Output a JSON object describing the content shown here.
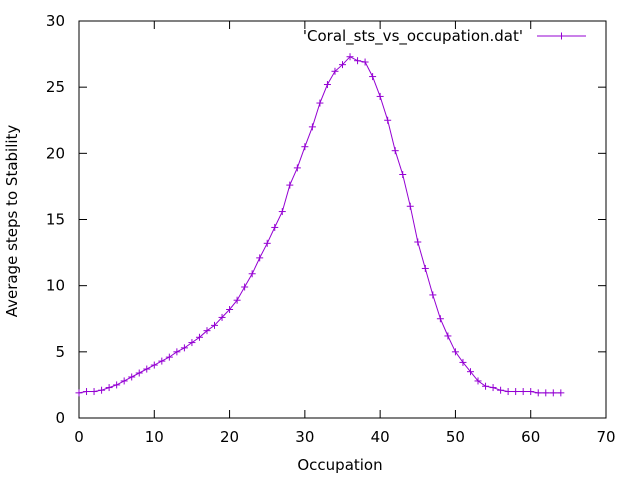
{
  "chart_data": {
    "type": "line",
    "title": "",
    "xlabel": "Occupation",
    "ylabel": "Average steps to Stability",
    "xlim": [
      0,
      70
    ],
    "ylim": [
      0,
      30
    ],
    "xticks": [
      0,
      10,
      20,
      30,
      40,
      50,
      60,
      70
    ],
    "yticks": [
      0,
      5,
      10,
      15,
      20,
      25,
      30
    ],
    "grid": false,
    "legend_position": "top-right",
    "series": [
      {
        "name": "'Coral_sts_vs_occupation.dat'",
        "color": "#9400d3",
        "marker": "plus",
        "x": [
          0,
          1,
          2,
          3,
          4,
          5,
          6,
          7,
          8,
          9,
          10,
          11,
          12,
          13,
          14,
          15,
          16,
          17,
          18,
          19,
          20,
          21,
          22,
          23,
          24,
          25,
          26,
          27,
          28,
          29,
          30,
          31,
          32,
          33,
          34,
          35,
          36,
          37,
          38,
          39,
          40,
          41,
          42,
          43,
          44,
          45,
          46,
          47,
          48,
          49,
          50,
          51,
          52,
          53,
          54,
          55,
          56,
          57,
          58,
          59,
          60,
          61,
          62,
          63,
          64
        ],
        "y": [
          1.9,
          2.0,
          2.0,
          2.1,
          2.3,
          2.5,
          2.8,
          3.1,
          3.4,
          3.7,
          4.0,
          4.3,
          4.6,
          5.0,
          5.3,
          5.7,
          6.1,
          6.6,
          7.0,
          7.6,
          8.2,
          8.9,
          9.9,
          10.9,
          12.1,
          13.2,
          14.4,
          15.6,
          17.6,
          18.9,
          20.5,
          22.0,
          23.8,
          25.2,
          26.2,
          26.7,
          27.3,
          27.0,
          26.9,
          25.8,
          24.3,
          22.5,
          20.2,
          18.4,
          16.0,
          13.3,
          11.3,
          9.3,
          7.5,
          6.2,
          5.0,
          4.2,
          3.5,
          2.8,
          2.4,
          2.3,
          2.1,
          2.0,
          2.0,
          2.0,
          2.0,
          1.9,
          1.9,
          1.9,
          1.9
        ]
      }
    ]
  }
}
